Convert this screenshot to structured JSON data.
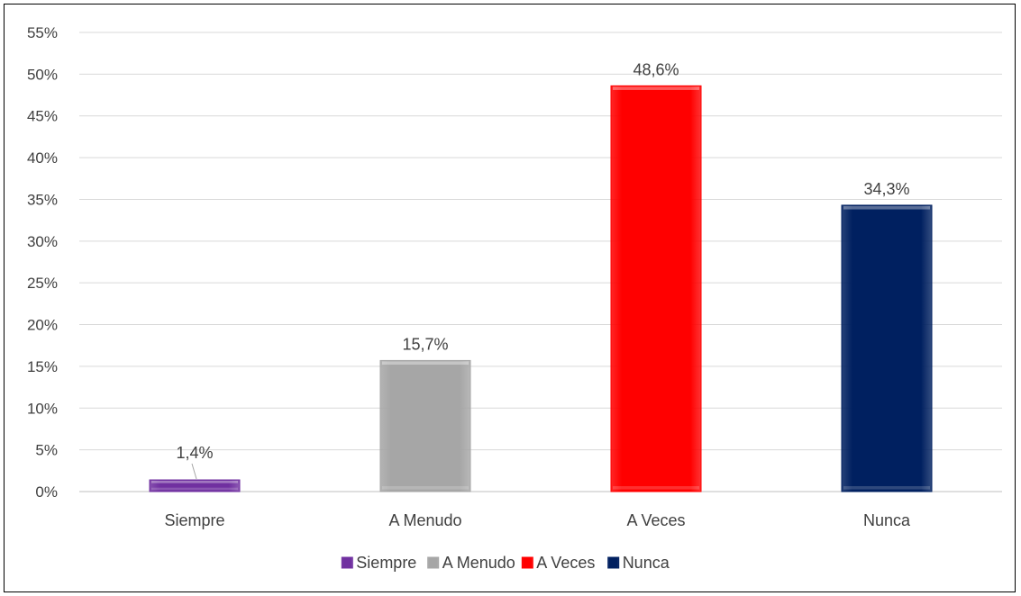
{
  "chart_data": {
    "type": "bar",
    "title": "",
    "xlabel": "",
    "ylabel": "",
    "categories": [
      "Siempre",
      "A Menudo",
      "A Veces",
      "Nunca"
    ],
    "values": [
      1.4,
      15.7,
      48.6,
      34.3
    ],
    "data_labels": [
      "1,4%",
      "15,7%",
      "48,6%",
      "34,3%"
    ],
    "ylim": [
      0,
      55
    ],
    "yticks": [
      0,
      5,
      10,
      15,
      20,
      25,
      30,
      35,
      40,
      45,
      50,
      55
    ],
    "ytick_labels": [
      "0%",
      "5%",
      "10%",
      "15%",
      "20%",
      "25%",
      "30%",
      "35%",
      "40%",
      "45%",
      "50%",
      "55%"
    ],
    "grid": true,
    "legend": {
      "placement": "bottom",
      "entries": [
        "Siempre",
        "A Menudo",
        "A Veces",
        "Nunca"
      ]
    },
    "colors": [
      "#7030A0",
      "#A6A6A6",
      "#FF0000",
      "#002060"
    ]
  }
}
